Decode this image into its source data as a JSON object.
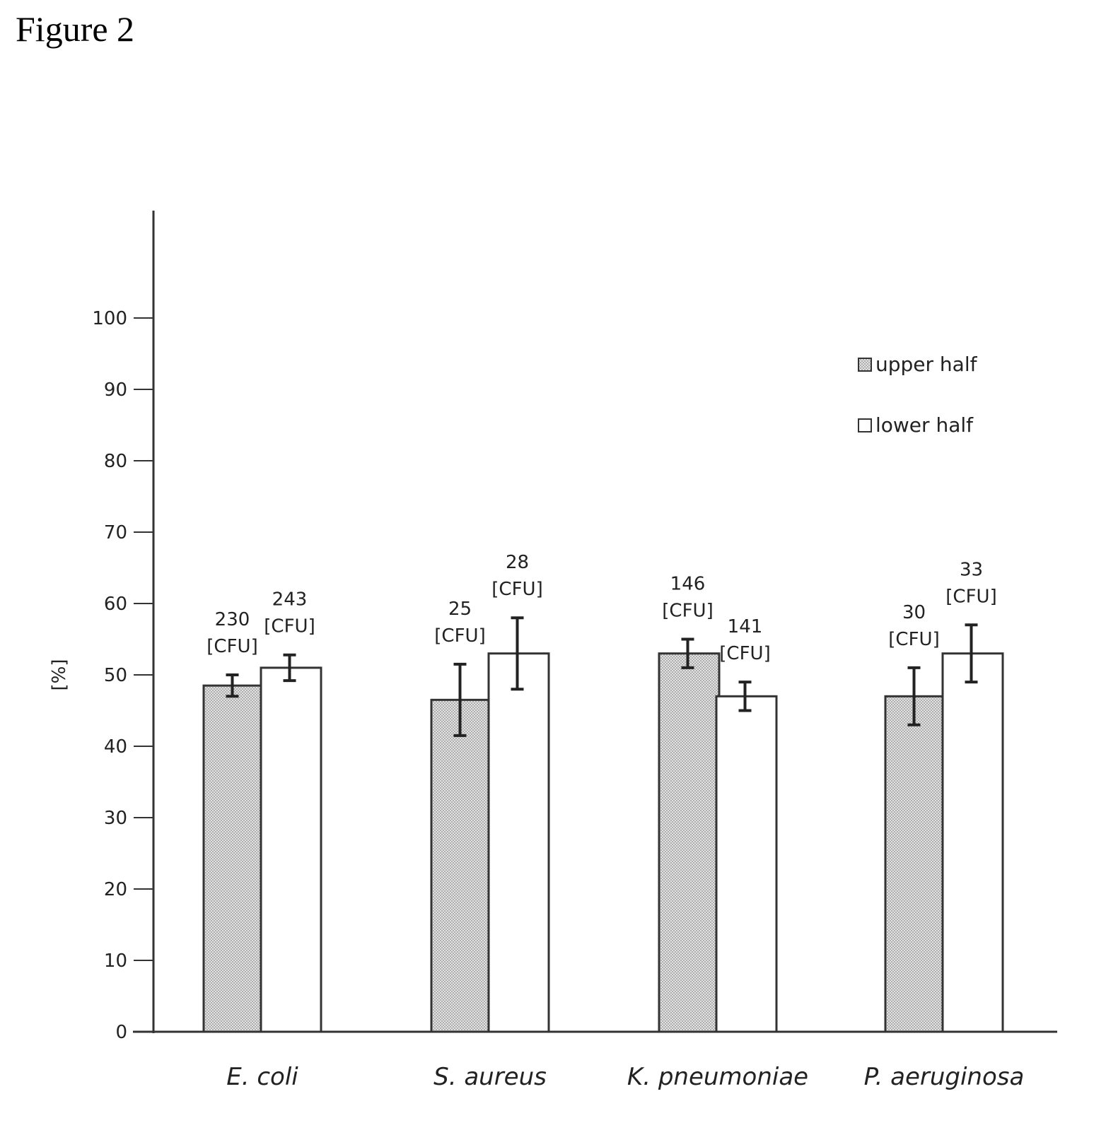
{
  "figure_label": "Figure 2",
  "chart_data": {
    "type": "bar",
    "title": "",
    "xlabel": "",
    "ylabel": "[%]",
    "ylim": [
      0,
      115
    ],
    "yticks": [
      0,
      10,
      20,
      30,
      40,
      50,
      60,
      70,
      80,
      90,
      100
    ],
    "categories": [
      "E. coli",
      "S. aureus",
      "K. pneumoniae",
      "P. aeruginosa"
    ],
    "series": [
      {
        "name": "upper half",
        "color": "#cfcfcf",
        "values": [
          48.5,
          46.5,
          53,
          47
        ],
        "errors": [
          1.5,
          5,
          2,
          4
        ],
        "labels": [
          [
            "230",
            "[CFU]"
          ],
          [
            "25",
            "[CFU]"
          ],
          [
            "146",
            "[CFU]"
          ],
          [
            "30",
            "[CFU]"
          ]
        ]
      },
      {
        "name": "lower half",
        "color": "#ffffff",
        "values": [
          51,
          53,
          47,
          53
        ],
        "errors": [
          1.8,
          5,
          2,
          4
        ],
        "labels": [
          [
            "243",
            "[CFU]"
          ],
          [
            "28",
            "[CFU]"
          ],
          [
            "141",
            "[CFU]"
          ],
          [
            "33",
            "[CFU]"
          ]
        ]
      }
    ],
    "legend_position": "top-right",
    "grid": false
  }
}
